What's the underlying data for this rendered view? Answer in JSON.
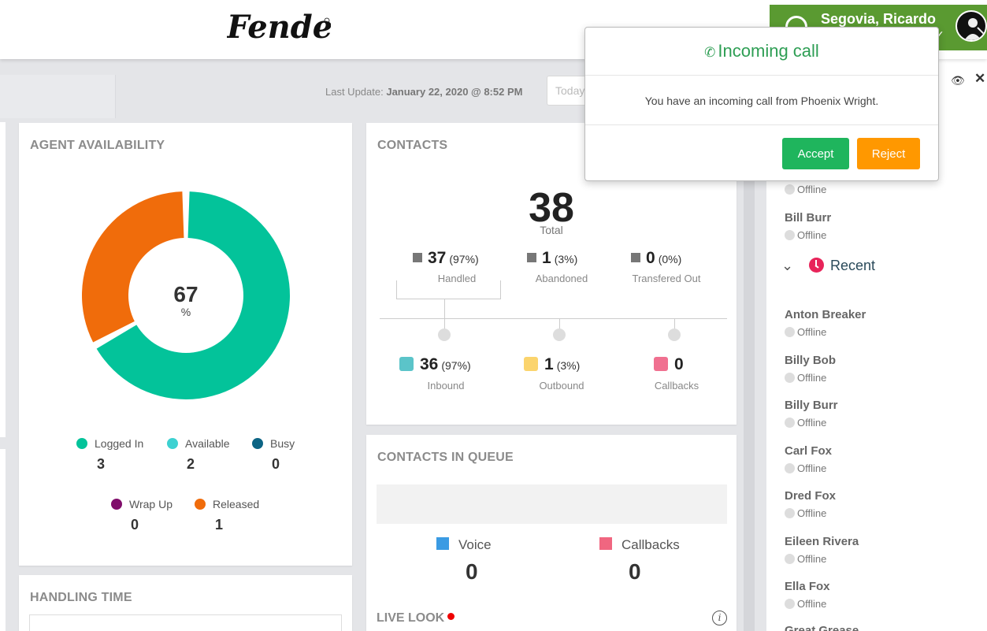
{
  "header": {
    "user_name": "Segovia, Ricardo",
    "accent_color": "#5a9a31"
  },
  "toolbar": {
    "last_update_prefix": "Last Update:",
    "last_update_value": "January 22, 2020 @ 8:52 PM",
    "date_placeholder": "Today"
  },
  "agent_availability": {
    "title": "AGENT AVAILABILITY",
    "center_value": "67",
    "center_unit": "%",
    "donut_fraction": 0.67,
    "legend": [
      {
        "label": "Logged In",
        "value": "3",
        "color": "#03c39a"
      },
      {
        "label": "Available",
        "value": "2",
        "color": "#3dd1d1"
      },
      {
        "label": "Busy",
        "value": "0",
        "color": "#0c6484"
      },
      {
        "label": "Wrap Up",
        "value": "0",
        "color": "#800d6b"
      },
      {
        "label": "Released",
        "value": "1",
        "color": "#f06c0b"
      }
    ]
  },
  "handling_time": {
    "title": "HANDLING TIME"
  },
  "contacts": {
    "title": "CONTACTS",
    "total": "38",
    "total_label": "Total",
    "top": [
      {
        "value": "37",
        "pct": "(97%)",
        "label": "Handled"
      },
      {
        "value": "1",
        "pct": "(3%)",
        "label": "Abandoned"
      },
      {
        "value": "0",
        "pct": "(0%)",
        "label": "Transfered Out"
      }
    ],
    "bottom": [
      {
        "value": "36",
        "pct": "(97%)",
        "label": "Inbound",
        "color": "#5bc4c9"
      },
      {
        "value": "1",
        "pct": "(3%)",
        "label": "Outbound",
        "color": "#fbd46d"
      },
      {
        "value": "0",
        "pct": "",
        "label": "Callbacks",
        "color": "#f07090"
      }
    ]
  },
  "queue": {
    "title": "CONTACTS IN QUEUE",
    "voice_label": "Voice",
    "voice_value": "0",
    "voice_color": "#3b9be3",
    "callbacks_label": "Callbacks",
    "callbacks_value": "0",
    "callbacks_color": "#f06680",
    "live_look": "LIVE LOOK"
  },
  "sidebar": {
    "status_label": "Offline",
    "recent_label": "Recent",
    "top_agents": [
      {
        "name": "",
        "status": "Offline"
      },
      {
        "name": "Bill Burr",
        "status": "Offline"
      }
    ],
    "recent_agents": [
      {
        "name": "Anton Breaker",
        "status": "Offline"
      },
      {
        "name": "Billy Bob",
        "status": "Offline"
      },
      {
        "name": "Billy Burr",
        "status": "Offline"
      },
      {
        "name": "Carl Fox",
        "status": "Offline"
      },
      {
        "name": "Dred Fox",
        "status": "Offline"
      },
      {
        "name": "Eileen Rivera",
        "status": "Offline"
      },
      {
        "name": "Ella Fox",
        "status": "Offline"
      },
      {
        "name": "Great Grease",
        "status": ""
      }
    ]
  },
  "popup": {
    "title": "Incoming call",
    "message": "You have an incoming call from Phoenix Wright.",
    "accept_label": "Accept",
    "reject_label": "Reject"
  }
}
